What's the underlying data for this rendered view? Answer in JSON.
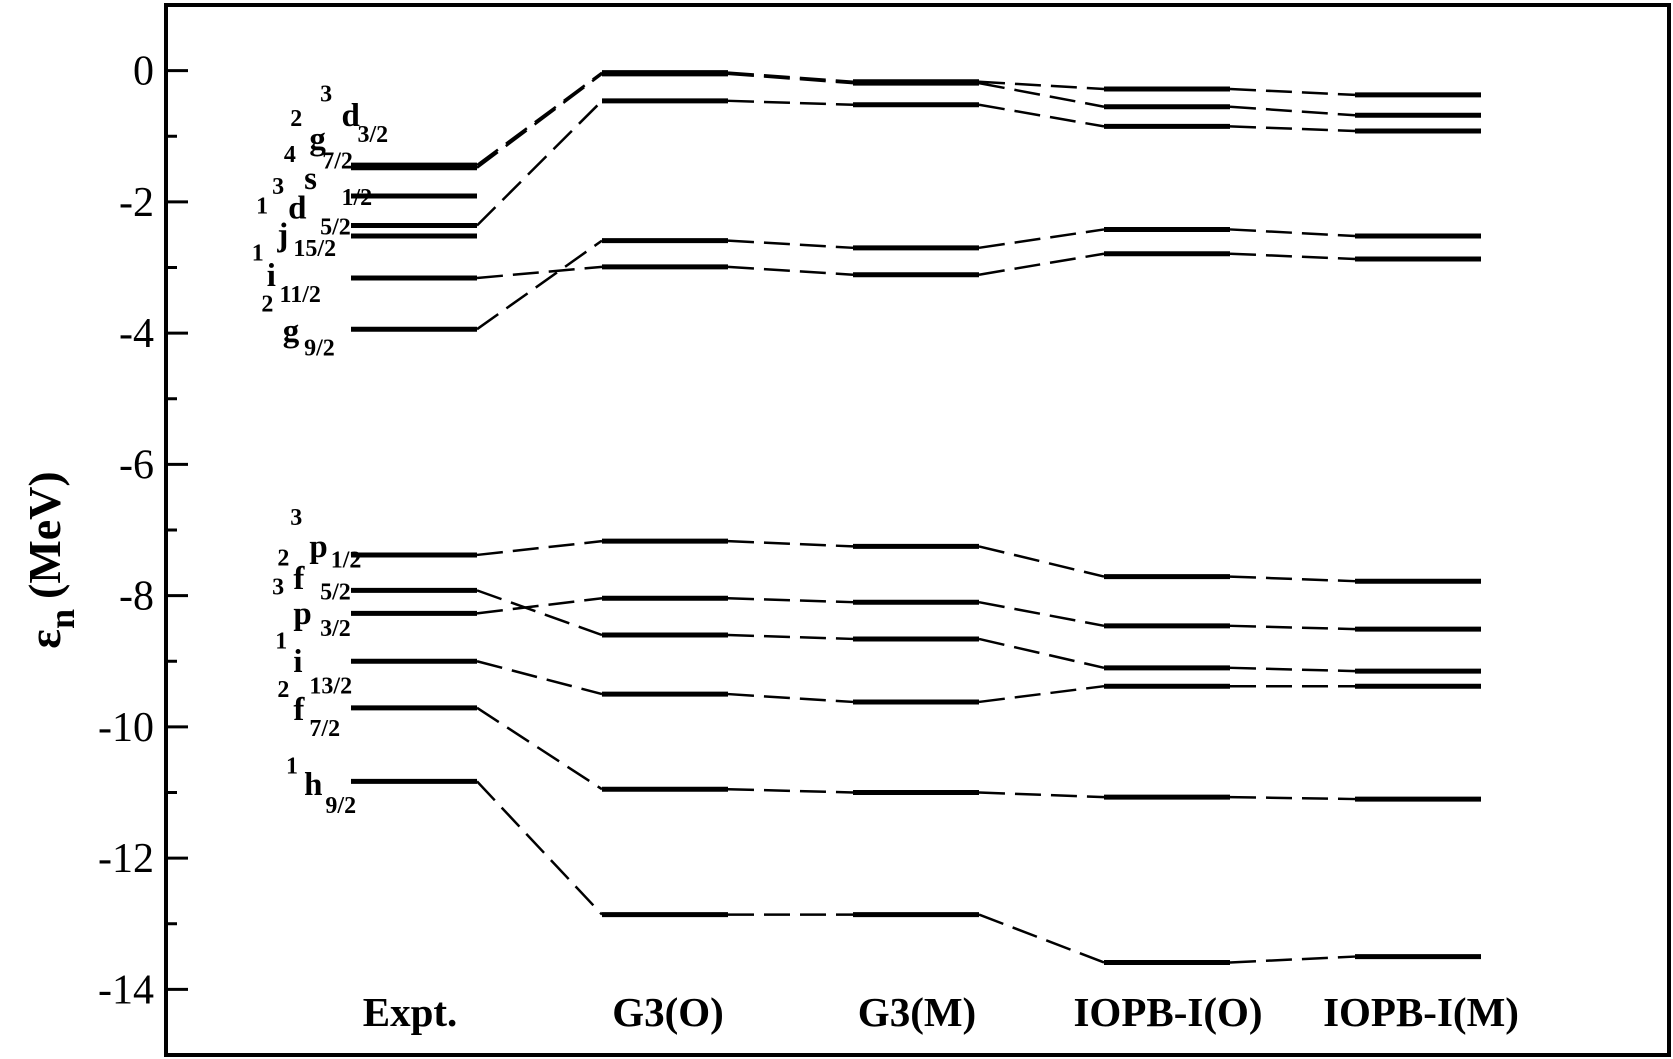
{
  "chart_data": {
    "type": "level-scheme",
    "ylabel": {
      "symbol": "ε",
      "sub": "n",
      "unit": "(MeV)"
    },
    "categories": [
      "Expt.",
      "G3(O)",
      "G3(M)",
      "IOPB-I(O)",
      "IOPB-I(M)"
    ],
    "color": "#000000",
    "ylim": [
      -15,
      1
    ],
    "yticks": [
      0,
      -2,
      -4,
      -6,
      -8,
      -10,
      -12,
      -14
    ],
    "yminorticks": [
      -1,
      -3,
      -5,
      -7,
      -9,
      -11,
      -13
    ],
    "series": [
      {
        "name": {
          "n": "3",
          "l": "d",
          "j": "3/2"
        },
        "values": [
          -1.44,
          -0.03,
          -0.17,
          -0.28,
          -0.37
        ]
      },
      {
        "name": {
          "n": "2",
          "l": "g",
          "j": "7/2"
        },
        "values": [
          -1.48,
          -0.05,
          -0.19,
          -0.55,
          -0.68
        ]
      },
      {
        "name": {
          "n": "4",
          "l": "s",
          "j": "1/2"
        },
        "values": [
          -1.91,
          null,
          null,
          null,
          null
        ]
      },
      {
        "name": {
          "n": "3",
          "l": "d",
          "j": "5/2"
        },
        "values": [
          -2.36,
          -0.46,
          -0.52,
          -0.85,
          -0.92
        ]
      },
      {
        "name": {
          "n": "1",
          "l": "j",
          "j": "15/2"
        },
        "values": [
          -2.52,
          null,
          null,
          null,
          null
        ]
      },
      {
        "name": {
          "n": "1",
          "l": "i",
          "j": "11/2"
        },
        "values": [
          -3.16,
          -2.99,
          -3.11,
          -2.79,
          -2.87
        ]
      },
      {
        "name": {
          "n": "2",
          "l": "g",
          "j": "9/2"
        },
        "values": [
          -3.94,
          -2.59,
          -2.7,
          -2.42,
          -2.52
        ]
      },
      {
        "name": {
          "n": "3",
          "l": "p",
          "j": "1/2"
        },
        "values": [
          -7.38,
          -7.17,
          -7.25,
          -7.71,
          -7.78
        ]
      },
      {
        "name": {
          "n": "2",
          "l": "f",
          "j": "5/2"
        },
        "values": [
          -7.92,
          -8.6,
          -8.66,
          -9.1,
          -9.15
        ]
      },
      {
        "name": {
          "n": "3",
          "l": "p",
          "j": "3/2"
        },
        "values": [
          -8.27,
          -8.04,
          -8.1,
          -8.46,
          -8.51
        ]
      },
      {
        "name": {
          "n": "1",
          "l": "i",
          "j": "13/2"
        },
        "values": [
          -9.0,
          -9.5,
          -9.62,
          -9.38,
          -9.38
        ]
      },
      {
        "name": {
          "n": "2",
          "l": "f",
          "j": "7/2"
        },
        "values": [
          -9.71,
          -10.95,
          -11.0,
          -11.07,
          -11.1
        ]
      },
      {
        "name": {
          "n": "1",
          "l": "h",
          "j": "9/2"
        },
        "values": [
          -10.83,
          -12.86,
          -12.86,
          -13.59,
          -13.5
        ]
      }
    ]
  }
}
